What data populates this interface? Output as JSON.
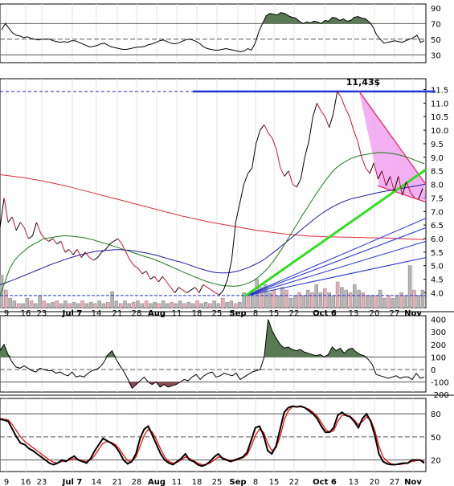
{
  "chart_data": [
    {
      "type": "line",
      "panel": "rsi",
      "ylim": [
        20,
        95
      ],
      "yticks": [
        90,
        70,
        50,
        30
      ],
      "reference_lines": [
        70,
        50,
        30
      ],
      "values": [
        62,
        70,
        64,
        58,
        55,
        54,
        52,
        53,
        51,
        50,
        49,
        50,
        50,
        50,
        48,
        47,
        46,
        47,
        46,
        48,
        48,
        46,
        44,
        42,
        40,
        41,
        42,
        44,
        45,
        42,
        40,
        39,
        38,
        37,
        37,
        38,
        39,
        40,
        40,
        41,
        43,
        44,
        46,
        48,
        49,
        47,
        45,
        44,
        45,
        47,
        49,
        50,
        49,
        47,
        44,
        40,
        38,
        37,
        36,
        36,
        37,
        38,
        37,
        36,
        35,
        34,
        35,
        38,
        36,
        45,
        60,
        70,
        80,
        83,
        82,
        81,
        84,
        83,
        80,
        78,
        77,
        73,
        70,
        72,
        71,
        73,
        72,
        70,
        74,
        73,
        78,
        77,
        74,
        76,
        73,
        74,
        78,
        79,
        77,
        76,
        72,
        66,
        56,
        50,
        45,
        46,
        47,
        48,
        47,
        46,
        48,
        50,
        52,
        55,
        46,
        48
      ]
    },
    {
      "type": "line",
      "panel": "price",
      "ylim": [
        3.45,
        11.9
      ],
      "yticks": [
        11.5,
        11.0,
        10.5,
        10.0,
        9.5,
        9.0,
        8.5,
        8.0,
        7.5,
        7.0,
        6.5,
        6.0,
        5.5,
        5.0,
        4.5,
        4.0
      ],
      "ytick_labels": [
        "11.5",
        "11.0",
        "10.5",
        "10.0",
        "9.5",
        "9.0",
        "8.5",
        "8.0",
        "7.5",
        "7.0",
        "6.5",
        "6.0",
        "5.5",
        "5.0",
        "4.5",
        "4.0"
      ],
      "annotation": "11,43$",
      "resistance": 11.43,
      "series": [
        {
          "values": [
            6.4,
            7.5,
            6.6,
            6.8,
            6.3,
            6.6,
            6.4,
            6.0,
            6.1,
            6.6,
            6.2,
            6.0,
            5.9,
            6.0,
            5.8,
            5.9,
            5.5,
            5.6,
            5.4,
            5.6,
            5.3,
            5.5,
            5.3,
            5.2,
            5.3,
            5.5,
            5.6,
            5.8,
            5.9,
            6.0,
            5.8,
            5.5,
            5.2,
            5.0,
            4.9,
            4.7,
            4.8,
            4.5,
            4.6,
            4.4,
            4.6,
            4.4,
            4.2,
            4.0,
            4.2,
            4.1,
            4.0,
            4.1,
            4.2,
            4.0,
            4.3,
            4.2,
            4.1,
            4.0,
            3.92,
            4.1,
            4.5,
            5.2,
            6.6,
            7.3,
            8.0,
            8.4,
            8.6,
            9.5,
            10.0,
            10.2,
            9.9,
            9.7,
            9.3,
            8.6,
            8.3,
            8.5,
            8.0,
            7.9,
            8.2,
            9.0,
            9.6,
            10.5,
            11.0,
            10.7,
            10.5,
            10.1,
            10.6,
            11.43,
            11.2,
            10.8,
            10.5,
            10.0,
            9.6,
            9.0,
            8.6,
            8.4,
            8.8,
            8.2,
            8.5,
            7.95,
            8.3,
            7.75,
            8.3,
            7.6,
            8.1,
            7.7,
            7.5,
            7.45,
            7.85
          ]
        },
        {
          "values": [
            3.9,
            4.4,
            4.9,
            5.2,
            5.4,
            5.55,
            5.7,
            5.8,
            5.9,
            6.0,
            6.02,
            6.05,
            6.08,
            6.1,
            6.1,
            6.08,
            6.06,
            6.04,
            6.0,
            5.96,
            5.9,
            5.85,
            5.8,
            5.74,
            5.68,
            5.62,
            5.56,
            5.5,
            5.44,
            5.38,
            5.32,
            5.27,
            5.2,
            5.13,
            5.05,
            4.97,
            4.89,
            4.81,
            4.73,
            4.66,
            4.58,
            4.51,
            4.44,
            4.38,
            4.33,
            4.29,
            4.26,
            4.25,
            4.24,
            4.26,
            4.3,
            4.36,
            4.45,
            4.58,
            4.74,
            4.93,
            5.15,
            5.4,
            5.68,
            5.97,
            6.27,
            6.56,
            6.87,
            7.13,
            7.42,
            7.7,
            7.96,
            8.21,
            8.43,
            8.62,
            8.75,
            8.86,
            8.96,
            9.02,
            9.07,
            9.1,
            9.14,
            9.16,
            9.18,
            9.17,
            9.15,
            9.12,
            9.08,
            9.03,
            8.97,
            8.9,
            8.83,
            8.76
          ]
        },
        {
          "values": [
            4.3,
            4.35,
            4.42,
            4.48,
            4.55,
            4.62,
            4.69,
            4.76,
            4.83,
            4.9,
            4.97,
            5.04,
            5.1,
            5.16,
            5.22,
            5.28,
            5.33,
            5.38,
            5.42,
            5.46,
            5.5,
            5.53,
            5.55,
            5.57,
            5.58,
            5.59,
            5.59,
            5.58,
            5.57,
            5.55,
            5.52,
            5.49,
            5.46,
            5.42,
            5.38,
            5.33,
            5.28,
            5.23,
            5.18,
            5.14,
            5.09,
            5.03,
            4.97,
            4.91,
            4.86,
            4.81,
            4.77,
            4.74,
            4.73,
            4.73,
            4.75,
            4.78,
            4.82,
            4.88,
            4.94,
            5.02,
            5.1,
            5.2,
            5.32,
            5.45,
            5.58,
            5.72,
            5.86,
            6.0,
            6.14,
            6.28,
            6.42,
            6.56,
            6.7,
            6.83,
            6.95,
            7.06,
            7.16,
            7.25,
            7.33,
            7.4,
            7.46,
            7.5,
            7.54,
            7.58,
            7.62,
            7.66,
            7.7,
            7.73,
            7.76,
            7.79,
            7.82,
            7.85,
            7.88,
            7.91,
            7.94,
            7.97,
            8.0
          ]
        },
        {
          "values": [
            8.36,
            8.33,
            8.3,
            8.27,
            8.24,
            8.2,
            8.16,
            8.12,
            8.07,
            8.02,
            7.97,
            7.92,
            7.86,
            7.8,
            7.74,
            7.68,
            7.62,
            7.56,
            7.5,
            7.44,
            7.38,
            7.32,
            7.26,
            7.2,
            7.14,
            7.08,
            7.02,
            6.96,
            6.9,
            6.84,
            6.79,
            6.74,
            6.69,
            6.64,
            6.59,
            6.55,
            6.51,
            6.47,
            6.43,
            6.39,
            6.35,
            6.31,
            6.28,
            6.25,
            6.22,
            6.19,
            6.16,
            6.14,
            6.12,
            6.1,
            6.09,
            6.08,
            6.07,
            6.06,
            6.06,
            6.05,
            6.05,
            6.04,
            6.04,
            6.03,
            6.03,
            6.02,
            6.02,
            6.01,
            6.0,
            5.99,
            5.98,
            5.97,
            5.96
          ]
        }
      ],
      "volume": [
        4.65,
        4.1,
        3.8,
        3.7,
        3.6,
        3.6,
        3.8,
        3.7,
        3.6,
        3.9,
        3.7,
        3.6,
        3.65,
        3.7,
        3.6,
        3.7,
        3.6,
        3.65,
        3.6,
        3.7,
        3.6,
        3.65,
        3.6,
        3.7,
        3.6,
        3.65,
        4.05,
        3.7,
        3.6,
        3.7,
        3.6,
        3.65,
        3.7,
        3.6,
        3.7,
        3.6,
        3.65,
        3.6,
        3.7,
        3.6,
        3.65,
        3.6,
        3.7,
        3.6,
        3.65,
        3.6,
        3.7,
        3.6,
        3.65,
        3.6,
        3.7,
        3.6,
        3.8,
        3.65,
        3.7,
        3.6,
        3.65,
        4.0,
        3.9,
        4.0,
        4.5,
        4.2,
        4.3,
        4.0,
        4.1,
        3.9,
        4.2,
        4.1,
        3.8,
        3.9,
        4.0,
        3.9,
        4.1,
        4.0,
        4.3,
        4.0,
        4.15,
        4.0,
        3.9,
        4.4,
        4.2,
        4.1,
        4.0,
        4.3,
        4.1,
        4.0,
        3.9,
        3.9,
        3.9,
        4.1,
        3.8,
        3.9,
        3.8,
        3.9,
        4.0,
        3.9,
        5.0,
        4.1,
        3.9,
        4.1
      ]
    },
    {
      "type": "line",
      "panel": "cci",
      "ylim": [
        -180,
        430
      ],
      "yticks": [
        400,
        300,
        200,
        100,
        0,
        -100,
        -200
      ],
      "yticks_printed": [
        "400",
        "300",
        "200",
        "100",
        "0",
        "-100",
        "-200"
      ],
      "reference_lines": [
        100,
        0,
        -100
      ],
      "values": [
        150,
        200,
        120,
        60,
        20,
        10,
        30,
        10,
        -10,
        -20,
        10,
        0,
        -10,
        -10,
        -30,
        -20,
        -40,
        -50,
        -20,
        -60,
        -50,
        -60,
        -30,
        -10,
        0,
        20,
        60,
        120,
        150,
        80,
        30,
        -20,
        -80,
        -150,
        -120,
        -90,
        -60,
        -100,
        -120,
        -100,
        -140,
        -120,
        -140,
        -130,
        -120,
        -100,
        -80,
        -90,
        -60,
        -40,
        -80,
        -50,
        -30,
        -20,
        -60,
        -50,
        -30,
        -40,
        -50,
        -30,
        -80,
        -60,
        -40,
        -20,
        -10,
        0,
        100,
        400,
        310,
        250,
        200,
        170,
        180,
        160,
        150,
        160,
        140,
        130,
        120,
        110,
        120,
        100,
        120,
        180,
        150,
        170,
        130,
        160,
        170,
        140,
        120,
        110,
        80,
        40,
        -40,
        -50,
        -60,
        -70,
        -60,
        -50,
        -70,
        -60,
        -60,
        -80,
        -30,
        -70,
        -60
      ]
    },
    {
      "type": "line",
      "panel": "stochastic",
      "ylim": [
        5,
        100
      ],
      "yticks": [
        80,
        50,
        20
      ],
      "reference_lines": [
        80,
        50,
        20
      ],
      "series": [
        {
          "values": [
            73,
            72,
            70,
            60,
            50,
            42,
            40,
            35,
            32,
            28,
            24,
            20,
            16,
            14,
            16,
            20,
            18,
            22,
            25,
            20,
            18,
            16,
            22,
            32,
            40,
            48,
            45,
            42,
            38,
            30,
            20,
            15,
            18,
            28,
            48,
            60,
            64,
            52,
            40,
            28,
            20,
            16,
            14,
            18,
            22,
            28,
            20,
            18,
            14,
            12,
            14,
            18,
            24,
            28,
            22,
            20,
            18,
            20,
            22,
            24,
            30,
            46,
            62,
            64,
            52,
            32,
            28,
            38,
            60,
            82,
            88,
            90,
            89,
            90,
            88,
            84,
            80,
            74,
            64,
            56,
            56,
            62,
            78,
            82,
            78,
            76,
            70,
            62,
            74,
            80,
            70,
            52,
            28,
            18,
            15,
            14,
            14,
            15,
            16,
            16,
            20,
            20,
            20,
            16
          ]
        },
        {
          "values": [
            74,
            73,
            72,
            66,
            58,
            50,
            44,
            40,
            36,
            32,
            28,
            24,
            20,
            17,
            16,
            18,
            19,
            20,
            22,
            21,
            19,
            18,
            20,
            26,
            34,
            42,
            44,
            43,
            40,
            34,
            26,
            19,
            18,
            24,
            38,
            52,
            60,
            56,
            46,
            34,
            24,
            18,
            16,
            17,
            20,
            24,
            22,
            19,
            16,
            14,
            14,
            16,
            20,
            24,
            23,
            21,
            19,
            19,
            21,
            23,
            27,
            38,
            52,
            60,
            56,
            42,
            32,
            36,
            50,
            72,
            84,
            89,
            89,
            89,
            88,
            86,
            82,
            77,
            69,
            60,
            56,
            58,
            70,
            78,
            78,
            77,
            72,
            66,
            70,
            76,
            72,
            58,
            38,
            24,
            18,
            15,
            14,
            14,
            15,
            16,
            18,
            19,
            20,
            18
          ]
        }
      ]
    }
  ],
  "chart_text": {
    "date_labels": [
      "9",
      "16",
      "23",
      "Jul 7",
      "14",
      "21",
      "28",
      "Aug",
      "11",
      "18",
      "25",
      "Sep",
      "8",
      "15",
      "22",
      "Oct 6",
      "13",
      "20",
      "27",
      "Nov"
    ],
    "date_labels_bottom": [
      "9",
      "16",
      "23",
      "Jul 7",
      "14",
      "21",
      "28",
      "Aug",
      "11",
      "18",
      "25",
      "Sep",
      "8",
      "15",
      "22",
      "Oct 6",
      "13",
      "20",
      "27",
      "Nov"
    ]
  }
}
